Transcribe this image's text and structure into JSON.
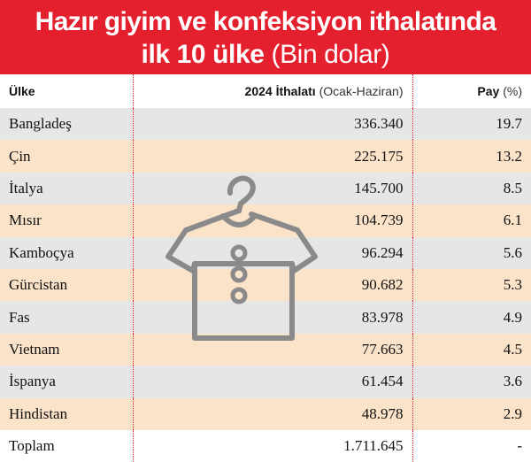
{
  "title": {
    "line1": "Hazır giyim ve konfeksiyon ithalatında",
    "line2_bold": "ilk 10 ülke",
    "line2_light": "(Bin dolar)"
  },
  "columns": {
    "country": "Ülke",
    "imports_bold": "2024 İthalatı",
    "imports_sub": "(Ocak-Haziran)",
    "share_bold": "Pay",
    "share_sub": "(%)"
  },
  "rows": [
    {
      "country": "Bangladeş",
      "imports": "336.340",
      "share": "19.7"
    },
    {
      "country": "Çin",
      "imports": "225.175",
      "share": "13.2"
    },
    {
      "country": "İtalya",
      "imports": "145.700",
      "share": "8.5"
    },
    {
      "country": "Mısır",
      "imports": "104.739",
      "share": "6.1"
    },
    {
      "country": "Kamboçya",
      "imports": "96.294",
      "share": "5.6"
    },
    {
      "country": "Gürcistan",
      "imports": "90.682",
      "share": "5.3"
    },
    {
      "country": "Fas",
      "imports": "83.978",
      "share": "4.9"
    },
    {
      "country": "Vietnam",
      "imports": "77.663",
      "share": "4.5"
    },
    {
      "country": "İspanya",
      "imports": "61.454",
      "share": "3.6"
    },
    {
      "country": "Hindistan",
      "imports": "48.978",
      "share": "2.9"
    }
  ],
  "total": {
    "label": "Toplam",
    "imports": "1.711.645",
    "share": "-"
  },
  "colors": {
    "header_bg": "#e5202e",
    "row_gray": "#e6e6e6",
    "row_peach": "#fbe3c9",
    "icon_stroke": "#8a8a8a"
  },
  "icons": {
    "watermark": "shirt-on-hanger-icon"
  }
}
